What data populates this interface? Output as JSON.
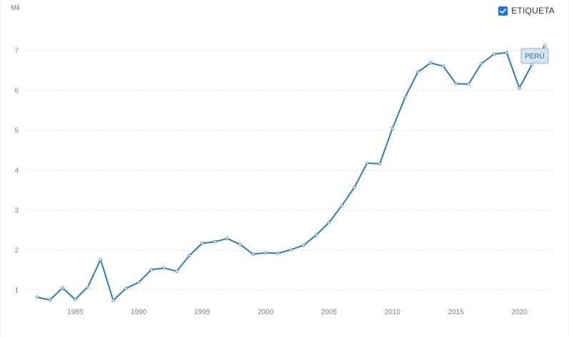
{
  "chart_data": {
    "type": "line",
    "unit_label": "Mil",
    "toggle": {
      "label": "ETIQUETA",
      "checked": true
    },
    "series_label": "PERÚ",
    "x": [
      1982,
      1983,
      1984,
      1985,
      1986,
      1987,
      1988,
      1989,
      1990,
      1991,
      1992,
      1993,
      1994,
      1995,
      1996,
      1997,
      1998,
      1999,
      2000,
      2001,
      2002,
      2003,
      2004,
      2005,
      2006,
      2007,
      2008,
      2009,
      2010,
      2011,
      2012,
      2013,
      2014,
      2015,
      2016,
      2017,
      2018,
      2019,
      2020,
      2021,
      2022
    ],
    "series": [
      {
        "values": [
          0.82,
          0.75,
          1.05,
          0.76,
          1.08,
          1.76,
          0.74,
          1.04,
          1.19,
          1.51,
          1.55,
          1.47,
          1.86,
          2.17,
          2.21,
          2.29,
          2.14,
          1.9,
          1.93,
          1.92,
          2.01,
          2.12,
          2.38,
          2.69,
          3.11,
          3.57,
          4.18,
          4.16,
          5.05,
          5.83,
          6.46,
          6.69,
          6.61,
          6.17,
          6.16,
          6.67,
          6.91,
          6.95,
          6.06,
          6.65,
          7.12
        ]
      }
    ],
    "x_ticks": [
      1985,
      1990,
      1995,
      2000,
      2005,
      2010,
      2015,
      2020
    ],
    "y_ticks": [
      1,
      2,
      3,
      4,
      5,
      6,
      7
    ],
    "xlim": [
      1982,
      2022
    ],
    "ylim": [
      0.5,
      7.5
    ],
    "grid": "horizontal dashed",
    "colors": {
      "line": "#2e7ab6",
      "grid": "#e4e4e4",
      "checkbox": "#1a73e8",
      "label_bg": "#d3e5f3",
      "label_border": "#8fb4d1"
    }
  }
}
